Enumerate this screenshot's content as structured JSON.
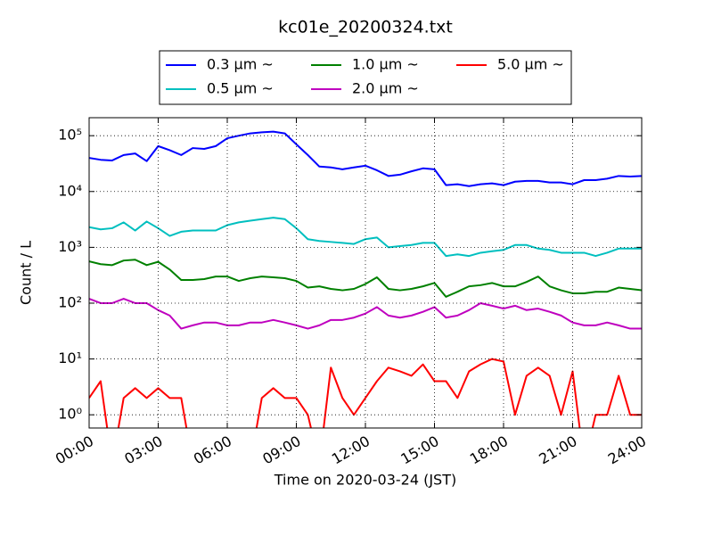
{
  "chart_data": {
    "type": "line",
    "title": "kc01e_20200324.txt",
    "x_label": "Time on 2020-03-24 (JST)",
    "y_label": "Count / L",
    "x": [
      "00:00",
      "00:30",
      "01:00",
      "01:30",
      "02:00",
      "02:30",
      "03:00",
      "03:30",
      "04:00",
      "04:30",
      "05:00",
      "05:30",
      "06:00",
      "06:30",
      "07:00",
      "07:30",
      "08:00",
      "08:30",
      "09:00",
      "09:30",
      "10:00",
      "10:30",
      "11:00",
      "11:30",
      "12:00",
      "12:30",
      "13:00",
      "13:30",
      "14:00",
      "14:30",
      "15:00",
      "15:30",
      "16:00",
      "16:30",
      "17:00",
      "17:30",
      "18:00",
      "18:30",
      "19:00",
      "19:30",
      "20:00",
      "20:30",
      "21:00",
      "21:30",
      "22:00",
      "22:30",
      "23:00",
      "23:30",
      "24:00"
    ],
    "xlim": [
      "00:00",
      "24:00"
    ],
    "xticks": [
      "00:00",
      "03:00",
      "06:00",
      "09:00",
      "12:00",
      "15:00",
      "18:00",
      "21:00",
      "24:00"
    ],
    "ylim": [
      0.58,
      210000
    ],
    "log_y": true,
    "grid": true,
    "legend_position": "top",
    "yticks": [
      {
        "value": 1,
        "label": "10⁰"
      },
      {
        "value": 10,
        "label": "10¹"
      },
      {
        "value": 100,
        "label": "10²"
      },
      {
        "value": 1000,
        "label": "10³"
      },
      {
        "value": 10000,
        "label": "10⁴"
      },
      {
        "value": 100000,
        "label": "10⁵"
      }
    ],
    "series": [
      {
        "name": "0.3 μm ~",
        "color": "#0000ff",
        "values": [
          40000,
          37000,
          36000,
          45000,
          48000,
          35000,
          65000,
          55000,
          45000,
          60000,
          58000,
          65000,
          90000,
          100000,
          110000,
          115000,
          118000,
          110000,
          70000,
          45000,
          28000,
          27000,
          25000,
          27000,
          29000,
          24000,
          19000,
          20000,
          23000,
          26000,
          25000,
          13000,
          13500,
          12500,
          13500,
          14000,
          13000,
          15000,
          15500,
          15500,
          14500,
          14500,
          13500,
          16000,
          16000,
          17000,
          19000,
          18500,
          19000
        ]
      },
      {
        "name": "0.5 μm ~",
        "color": "#00bfbf",
        "values": [
          2300,
          2100,
          2200,
          2800,
          2000,
          2900,
          2200,
          1600,
          1900,
          2000,
          2000,
          2000,
          2500,
          2800,
          3000,
          3200,
          3400,
          3200,
          2200,
          1400,
          1300,
          1250,
          1200,
          1150,
          1400,
          1500,
          1000,
          1050,
          1100,
          1200,
          1200,
          700,
          750,
          700,
          800,
          850,
          900,
          1100,
          1100,
          950,
          900,
          800,
          800,
          800,
          700,
          800,
          950,
          950,
          950
        ]
      },
      {
        "name": "1.0 μm ~",
        "color": "#008000",
        "values": [
          560,
          500,
          480,
          580,
          600,
          480,
          550,
          400,
          260,
          260,
          270,
          300,
          300,
          250,
          280,
          300,
          290,
          280,
          250,
          190,
          200,
          180,
          170,
          180,
          220,
          290,
          180,
          170,
          180,
          200,
          230,
          130,
          160,
          200,
          210,
          230,
          200,
          200,
          240,
          300,
          200,
          170,
          150,
          150,
          160,
          160,
          190,
          180,
          170
        ]
      },
      {
        "name": "2.0 μm ~",
        "color": "#bf00bf",
        "values": [
          120,
          100,
          100,
          120,
          100,
          100,
          75,
          60,
          35,
          40,
          45,
          45,
          40,
          40,
          45,
          45,
          50,
          45,
          40,
          35,
          40,
          50,
          50,
          55,
          65,
          85,
          60,
          55,
          60,
          70,
          85,
          55,
          60,
          75,
          100,
          90,
          80,
          90,
          75,
          80,
          70,
          60,
          45,
          40,
          40,
          45,
          40,
          35,
          35
        ]
      },
      {
        "name": "5.0 μm ~",
        "color": "#ff0000",
        "values": [
          2,
          4,
          0,
          2,
          3,
          2,
          3,
          2,
          2,
          0,
          0,
          0,
          0,
          0,
          0,
          2,
          3,
          2,
          2,
          1,
          0,
          7,
          2,
          1,
          2,
          4,
          7,
          6,
          5,
          8,
          4,
          4,
          2,
          6,
          8,
          10,
          9,
          1,
          5,
          7,
          5,
          1,
          6,
          0,
          1,
          1,
          5,
          1,
          1
        ]
      }
    ]
  }
}
